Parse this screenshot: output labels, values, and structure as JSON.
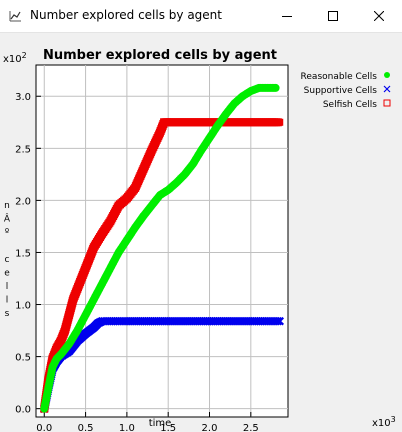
{
  "window": {
    "title": "Number explored cells by agent",
    "icon": "chart-app-icon",
    "controls": [
      "minimize-icon",
      "maximize-icon",
      "close-icon"
    ]
  },
  "chart_data": {
    "type": "scatter",
    "title": "Number explored cells by agent",
    "xlabel": "time",
    "ylabel": "nÂº cells",
    "x_multiplier": "x10^3",
    "y_multiplier": "x10^2",
    "xlim": [
      -0.1,
      2.95
    ],
    "ylim": [
      -0.08,
      3.3
    ],
    "xticks": [
      0.0,
      0.5,
      1.0,
      1.5,
      2.0,
      2.5
    ],
    "xtick_labels": [
      "0.0",
      "0.5",
      "1.0",
      "1.5",
      "2.0",
      "2.5"
    ],
    "yticks": [
      0.0,
      0.5,
      1.0,
      1.5,
      2.0,
      2.5,
      3.0
    ],
    "ytick_labels": [
      "0.0",
      "0.5",
      "1.0",
      "1.5",
      "2.0",
      "2.5",
      "3.0"
    ],
    "grid": true,
    "legend_position": "right",
    "series": [
      {
        "name": "Reasonable Cells",
        "marker": "circle",
        "color": "#00ee00",
        "x": [
          0.0,
          0.05,
          0.1,
          0.15,
          0.2,
          0.3,
          0.4,
          0.5,
          0.6,
          0.7,
          0.8,
          0.9,
          1.0,
          1.1,
          1.2,
          1.3,
          1.4,
          1.5,
          1.6,
          1.7,
          1.8,
          1.9,
          2.0,
          2.1,
          2.2,
          2.3,
          2.4,
          2.5,
          2.6,
          2.7,
          2.8
        ],
        "y": [
          0.0,
          0.2,
          0.4,
          0.48,
          0.52,
          0.62,
          0.75,
          0.9,
          1.05,
          1.2,
          1.35,
          1.5,
          1.62,
          1.74,
          1.85,
          1.95,
          2.05,
          2.1,
          2.17,
          2.25,
          2.35,
          2.48,
          2.6,
          2.72,
          2.83,
          2.93,
          3.0,
          3.05,
          3.08,
          3.08,
          3.08
        ]
      },
      {
        "name": "Supportive Cells",
        "marker": "x",
        "color": "#0000ee",
        "x": [
          0.0,
          0.05,
          0.1,
          0.15,
          0.2,
          0.3,
          0.35,
          0.4,
          0.5,
          0.6,
          0.65,
          0.7,
          1.0,
          1.5,
          2.0,
          2.5,
          2.85
        ],
        "y": [
          0.0,
          0.2,
          0.38,
          0.45,
          0.5,
          0.55,
          0.6,
          0.65,
          0.72,
          0.78,
          0.82,
          0.84,
          0.84,
          0.84,
          0.84,
          0.84,
          0.84
        ]
      },
      {
        "name": "Selfish Cells",
        "marker": "square",
        "color": "#ee0000",
        "x": [
          0.0,
          0.05,
          0.1,
          0.15,
          0.2,
          0.25,
          0.3,
          0.35,
          0.4,
          0.5,
          0.6,
          0.7,
          0.8,
          0.9,
          1.0,
          1.1,
          1.2,
          1.3,
          1.4,
          1.45,
          1.5,
          2.0,
          2.5,
          2.85
        ],
        "y": [
          0.0,
          0.28,
          0.48,
          0.58,
          0.65,
          0.75,
          0.9,
          1.05,
          1.15,
          1.35,
          1.55,
          1.68,
          1.8,
          1.95,
          2.02,
          2.12,
          2.3,
          2.48,
          2.65,
          2.75,
          2.75,
          2.75,
          2.75,
          2.75
        ]
      }
    ]
  }
}
